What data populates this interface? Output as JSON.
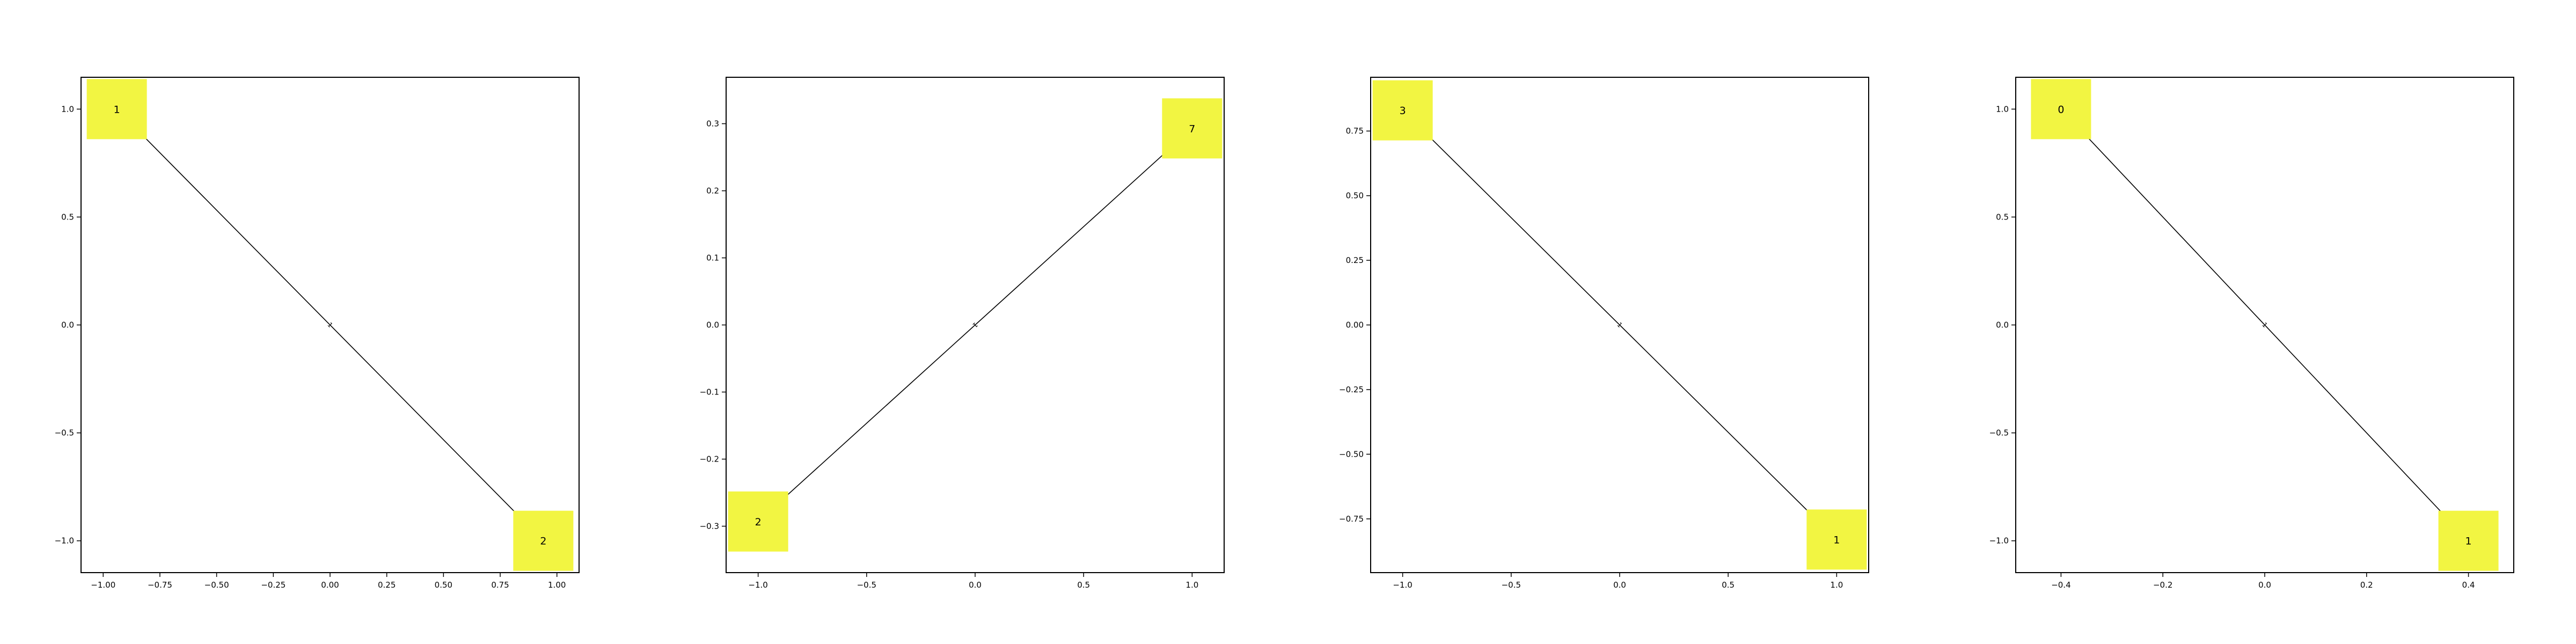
{
  "colors": {
    "node": "#f2f542",
    "edge": "#000000",
    "frame": "#000000"
  },
  "graphs": [
    {
      "nodes": [
        {
          "label": "1",
          "x": -0.94,
          "y": 1.0
        },
        {
          "label": "2",
          "x": 0.94,
          "y": -1.0
        }
      ],
      "edge": {
        "label": "1"
      },
      "xlim": [
        -1.1,
        1.1
      ],
      "ylim": [
        -1.15,
        1.15
      ],
      "xticks": [
        {
          "value": -1.0,
          "label": "−1.00"
        },
        {
          "value": -0.75,
          "label": "−0.75"
        },
        {
          "value": -0.5,
          "label": "−0.50"
        },
        {
          "value": -0.25,
          "label": "−0.25"
        },
        {
          "value": 0.0,
          "label": "0.00"
        },
        {
          "value": 0.25,
          "label": "0.25"
        },
        {
          "value": 0.5,
          "label": "0.50"
        },
        {
          "value": 0.75,
          "label": "0.75"
        },
        {
          "value": 1.0,
          "label": "1.00"
        }
      ],
      "yticks": [
        {
          "value": 1.0,
          "label": "1.0"
        },
        {
          "value": 0.5,
          "label": "0.5"
        },
        {
          "value": 0.0,
          "label": "0.0"
        },
        {
          "value": -0.5,
          "label": "−0.5"
        },
        {
          "value": -1.0,
          "label": "−1.0"
        }
      ]
    },
    {
      "nodes": [
        {
          "label": "7",
          "x": 1.0,
          "y": 0.293
        },
        {
          "label": "2",
          "x": -1.0,
          "y": -0.293
        }
      ],
      "edge": {
        "label": "1"
      },
      "xlim": [
        -1.15,
        1.15
      ],
      "ylim": [
        -0.37,
        0.37
      ],
      "xticks": [
        {
          "value": -1.0,
          "label": "−1.0"
        },
        {
          "value": -0.5,
          "label": "−0.5"
        },
        {
          "value": 0.0,
          "label": "0.0"
        },
        {
          "value": 0.5,
          "label": "0.5"
        },
        {
          "value": 1.0,
          "label": "1.0"
        }
      ],
      "yticks": [
        {
          "value": 0.3,
          "label": "0.3"
        },
        {
          "value": 0.2,
          "label": "0.2"
        },
        {
          "value": 0.1,
          "label": "0.1"
        },
        {
          "value": 0.0,
          "label": "0.0"
        },
        {
          "value": -0.1,
          "label": "−0.1"
        },
        {
          "value": -0.2,
          "label": "−0.2"
        },
        {
          "value": -0.3,
          "label": "−0.3"
        }
      ]
    },
    {
      "nodes": [
        {
          "label": "3",
          "x": -1.0,
          "y": 0.83
        },
        {
          "label": "1",
          "x": 1.0,
          "y": -0.83
        }
      ],
      "edge": {
        "label": "1"
      },
      "xlim": [
        -1.15,
        1.15
      ],
      "ylim": [
        -0.96,
        0.96
      ],
      "xticks": [
        {
          "value": -1.0,
          "label": "−1.0"
        },
        {
          "value": -0.5,
          "label": "−0.5"
        },
        {
          "value": 0.0,
          "label": "0.0"
        },
        {
          "value": 0.5,
          "label": "0.5"
        },
        {
          "value": 1.0,
          "label": "1.0"
        }
      ],
      "yticks": [
        {
          "value": 0.75,
          "label": "0.75"
        },
        {
          "value": 0.5,
          "label": "0.50"
        },
        {
          "value": 0.25,
          "label": "0.25"
        },
        {
          "value": 0.0,
          "label": "0.00"
        },
        {
          "value": -0.25,
          "label": "−0.25"
        },
        {
          "value": -0.5,
          "label": "−0.50"
        },
        {
          "value": -0.75,
          "label": "−0.75"
        }
      ]
    },
    {
      "nodes": [
        {
          "label": "0",
          "x": -0.4,
          "y": 1.0
        },
        {
          "label": "1",
          "x": 0.4,
          "y": -1.0
        }
      ],
      "edge": {
        "label": "1"
      },
      "xlim": [
        -0.49,
        0.49
      ],
      "ylim": [
        -1.15,
        1.15
      ],
      "xticks": [
        {
          "value": -0.4,
          "label": "−0.4"
        },
        {
          "value": -0.2,
          "label": "−0.2"
        },
        {
          "value": 0.0,
          "label": "0.0"
        },
        {
          "value": 0.2,
          "label": "0.2"
        },
        {
          "value": 0.4,
          "label": "0.4"
        }
      ],
      "yticks": [
        {
          "value": 1.0,
          "label": "1.0"
        },
        {
          "value": 0.5,
          "label": "0.5"
        },
        {
          "value": 0.0,
          "label": "0.0"
        },
        {
          "value": -0.5,
          "label": "−0.5"
        },
        {
          "value": -1.0,
          "label": "−1.0"
        }
      ]
    }
  ]
}
